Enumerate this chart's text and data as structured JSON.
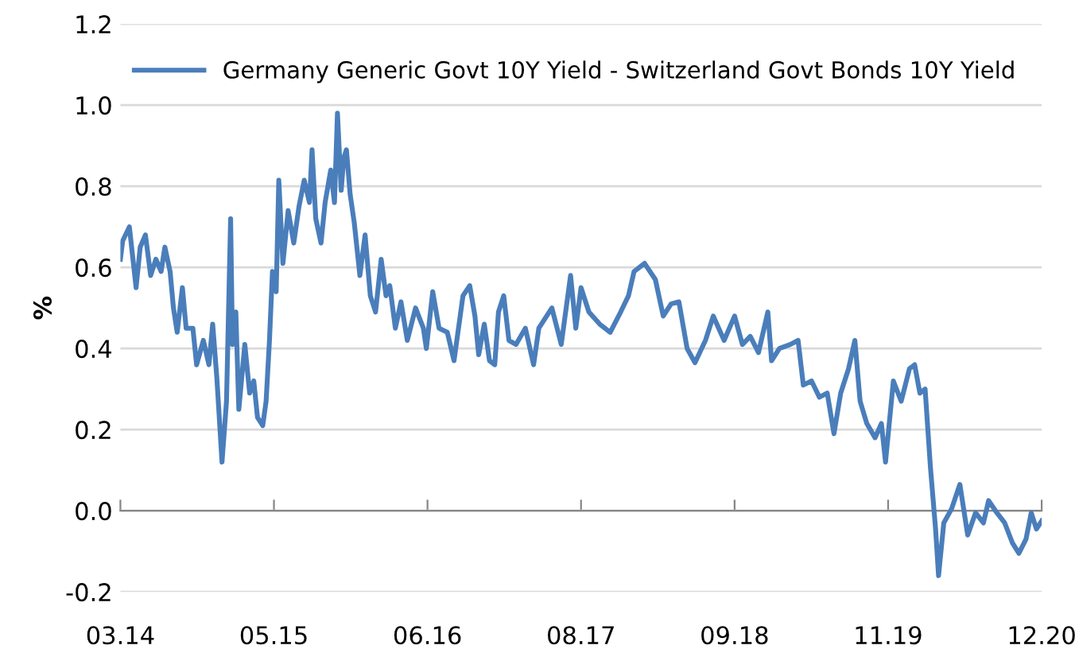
{
  "chart_data": {
    "type": "line",
    "ylabel": "%",
    "ylim": [
      -0.2,
      1.2
    ],
    "yticks": [
      {
        "value": -0.2,
        "label": "-0.2"
      },
      {
        "value": 0,
        "label": "0.0"
      },
      {
        "value": 0.2,
        "label": "0.2"
      },
      {
        "value": 0.4,
        "label": "0.4"
      },
      {
        "value": 0.6,
        "label": "0.6"
      },
      {
        "value": 0.8,
        "label": "0.8"
      },
      {
        "value": 1.0,
        "label": "1.0"
      },
      {
        "value": 1.2,
        "label": "1.2"
      }
    ],
    "xlim": [
      "2014-03-20",
      "2020-12-19"
    ],
    "xticks": [
      {
        "value": "2014-03-20",
        "label": "03.14"
      },
      {
        "value": "2015-05-05",
        "label": "05.15"
      },
      {
        "value": "2016-06-19",
        "label": "06.16"
      },
      {
        "value": "2017-08-04",
        "label": "08.17"
      },
      {
        "value": "2018-09-19",
        "label": "09.18"
      },
      {
        "value": "2019-11-04",
        "label": "11.19"
      },
      {
        "value": "2020-12-19",
        "label": "12.20"
      }
    ],
    "grid": "y",
    "legend": "top left",
    "line_style": "solid",
    "marker": "none",
    "series": [
      {
        "name": "Germany Generic Govt 10Y Yield - Switzerland Govt Bonds 10Y Yield",
        "color": "#4a7ebb",
        "x": [
          "2014-03-20",
          "2014-03-26",
          "2014-04-13",
          "2014-05-01",
          "2014-05-12",
          "2014-05-26",
          "2014-06-09",
          "2014-06-23",
          "2014-07-07",
          "2014-07-17",
          "2014-07-31",
          "2014-08-09",
          "2014-08-19",
          "2014-09-02",
          "2014-09-12",
          "2014-09-30",
          "2014-10-10",
          "2014-10-28",
          "2014-11-12",
          "2014-11-22",
          "2014-12-03",
          "2014-12-17",
          "2014-12-29",
          "2015-01-09",
          "2015-01-14",
          "2015-01-23",
          "2015-01-31",
          "2015-02-16",
          "2015-03-01",
          "2015-03-12",
          "2015-03-22",
          "2015-04-05",
          "2015-04-14",
          "2015-04-23",
          "2015-05-01",
          "2015-05-11",
          "2015-05-18",
          "2015-05-29",
          "2015-06-12",
          "2015-06-27",
          "2015-07-11",
          "2015-07-25",
          "2015-08-08",
          "2015-08-15",
          "2015-08-25",
          "2015-09-08",
          "2015-09-19",
          "2015-10-04",
          "2015-10-14",
          "2015-10-22",
          "2015-11-01",
          "2015-11-08",
          "2015-11-15",
          "2015-11-25",
          "2015-12-06",
          "2015-12-21",
          "2016-01-04",
          "2016-01-18",
          "2016-02-01",
          "2016-02-16",
          "2016-02-29",
          "2016-03-10",
          "2016-03-25",
          "2016-04-09",
          "2016-04-26",
          "2016-05-18",
          "2016-06-08",
          "2016-06-16",
          "2016-07-03",
          "2016-07-20",
          "2016-08-11",
          "2016-08-29",
          "2016-09-22",
          "2016-10-10",
          "2016-10-24",
          "2016-11-03",
          "2016-11-18",
          "2016-12-02",
          "2016-12-16",
          "2016-12-26",
          "2017-01-09",
          "2017-01-23",
          "2017-02-11",
          "2017-03-08",
          "2017-03-30",
          "2017-04-13",
          "2017-05-18",
          "2017-06-12",
          "2017-07-07",
          "2017-07-21",
          "2017-08-04",
          "2017-08-25",
          "2017-09-23",
          "2017-10-21",
          "2017-11-18",
          "2017-12-09",
          "2017-12-24",
          "2018-01-21",
          "2018-02-19",
          "2018-03-12",
          "2018-04-02",
          "2018-04-23",
          "2018-05-15",
          "2018-06-05",
          "2018-07-03",
          "2018-07-24",
          "2018-08-22",
          "2018-09-19",
          "2018-10-10",
          "2018-10-31",
          "2018-11-22",
          "2018-12-17",
          "2018-12-27",
          "2019-01-17",
          "2019-02-15",
          "2019-03-08",
          "2019-03-22",
          "2019-04-13",
          "2019-05-04",
          "2019-05-25",
          "2019-06-12",
          "2019-06-30",
          "2019-07-21",
          "2019-08-07",
          "2019-08-21",
          "2019-09-08",
          "2019-09-30",
          "2019-10-17",
          "2019-10-28",
          "2019-11-18",
          "2019-12-09",
          "2019-12-31",
          "2020-01-14",
          "2020-01-28",
          "2020-02-11",
          "2020-02-25",
          "2020-03-10",
          "2020-03-18",
          "2020-04-01",
          "2020-04-22",
          "2020-05-14",
          "2020-06-04",
          "2020-06-25",
          "2020-07-16",
          "2020-07-30",
          "2020-08-21",
          "2020-09-11",
          "2020-10-02",
          "2020-10-19",
          "2020-11-07",
          "2020-11-21",
          "2020-12-05",
          "2020-12-19"
        ],
        "values": [
          0.62,
          0.665,
          0.7,
          0.55,
          0.65,
          0.68,
          0.58,
          0.62,
          0.59,
          0.65,
          0.59,
          0.5,
          0.44,
          0.55,
          0.45,
          0.45,
          0.36,
          0.42,
          0.36,
          0.46,
          0.33,
          0.12,
          0.27,
          0.72,
          0.41,
          0.49,
          0.25,
          0.41,
          0.29,
          0.32,
          0.23,
          0.21,
          0.27,
          0.42,
          0.59,
          0.54,
          0.815,
          0.61,
          0.74,
          0.66,
          0.75,
          0.815,
          0.76,
          0.89,
          0.72,
          0.66,
          0.76,
          0.84,
          0.76,
          0.98,
          0.79,
          0.87,
          0.89,
          0.78,
          0.71,
          0.58,
          0.68,
          0.53,
          0.49,
          0.62,
          0.53,
          0.555,
          0.45,
          0.515,
          0.42,
          0.5,
          0.45,
          0.4,
          0.54,
          0.45,
          0.44,
          0.37,
          0.53,
          0.555,
          0.48,
          0.385,
          0.46,
          0.37,
          0.36,
          0.49,
          0.53,
          0.42,
          0.41,
          0.45,
          0.36,
          0.45,
          0.5,
          0.41,
          0.58,
          0.45,
          0.55,
          0.49,
          0.46,
          0.44,
          0.49,
          0.53,
          0.59,
          0.61,
          0.57,
          0.48,
          0.51,
          0.515,
          0.4,
          0.365,
          0.42,
          0.48,
          0.42,
          0.48,
          0.41,
          0.43,
          0.39,
          0.49,
          0.37,
          0.4,
          0.41,
          0.42,
          0.31,
          0.32,
          0.28,
          0.29,
          0.19,
          0.29,
          0.35,
          0.42,
          0.27,
          0.215,
          0.18,
          0.215,
          0.12,
          0.32,
          0.27,
          0.35,
          0.36,
          0.29,
          0.3,
          0.11,
          -0.045,
          -0.16,
          -0.03,
          0.005,
          0.065,
          -0.06,
          -0.005,
          -0.03,
          0.025,
          -0.005,
          -0.03,
          -0.08,
          -0.105,
          -0.07,
          -0.005,
          -0.045,
          -0.025
        ]
      }
    ]
  }
}
